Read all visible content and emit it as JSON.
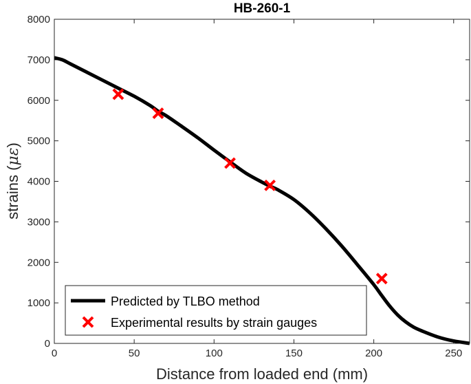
{
  "chart_data": {
    "type": "line",
    "title": "HB-260-1",
    "xlabel": "Distance from loaded end (mm)",
    "ylabel": {
      "prefix": "strains (",
      "unit": "με",
      "suffix": ")"
    },
    "xlim": [
      0,
      260
    ],
    "ylim": [
      0,
      8000
    ],
    "xticks": [
      0,
      50,
      100,
      150,
      200,
      250
    ],
    "yticks": [
      0,
      1000,
      2000,
      3000,
      4000,
      5000,
      6000,
      7000,
      8000
    ],
    "grid": false,
    "legend_position": "bottom-left",
    "series": [
      {
        "name": "Predicted by TLBO method",
        "style": "line",
        "color": "#000000",
        "x": [
          0,
          5,
          10,
          20,
          30,
          40,
          50,
          60,
          65,
          70,
          80,
          90,
          100,
          110,
          120,
          130,
          135,
          140,
          150,
          160,
          170,
          180,
          190,
          200,
          205,
          210,
          215,
          220,
          225,
          230,
          240,
          250,
          260
        ],
        "y": [
          7050,
          7000,
          6900,
          6700,
          6500,
          6300,
          6100,
          5870,
          5730,
          5620,
          5350,
          5070,
          4770,
          4480,
          4200,
          3980,
          3880,
          3790,
          3550,
          3220,
          2830,
          2400,
          1930,
          1450,
          1180,
          920,
          700,
          530,
          400,
          310,
          160,
          60,
          0
        ]
      },
      {
        "name": "Experimental results by strain gauges",
        "style": "marker-x",
        "color": "#ff0000",
        "x": [
          40,
          65,
          110,
          135,
          205
        ],
        "y": [
          6150,
          5680,
          4450,
          3900,
          1600
        ]
      }
    ]
  }
}
